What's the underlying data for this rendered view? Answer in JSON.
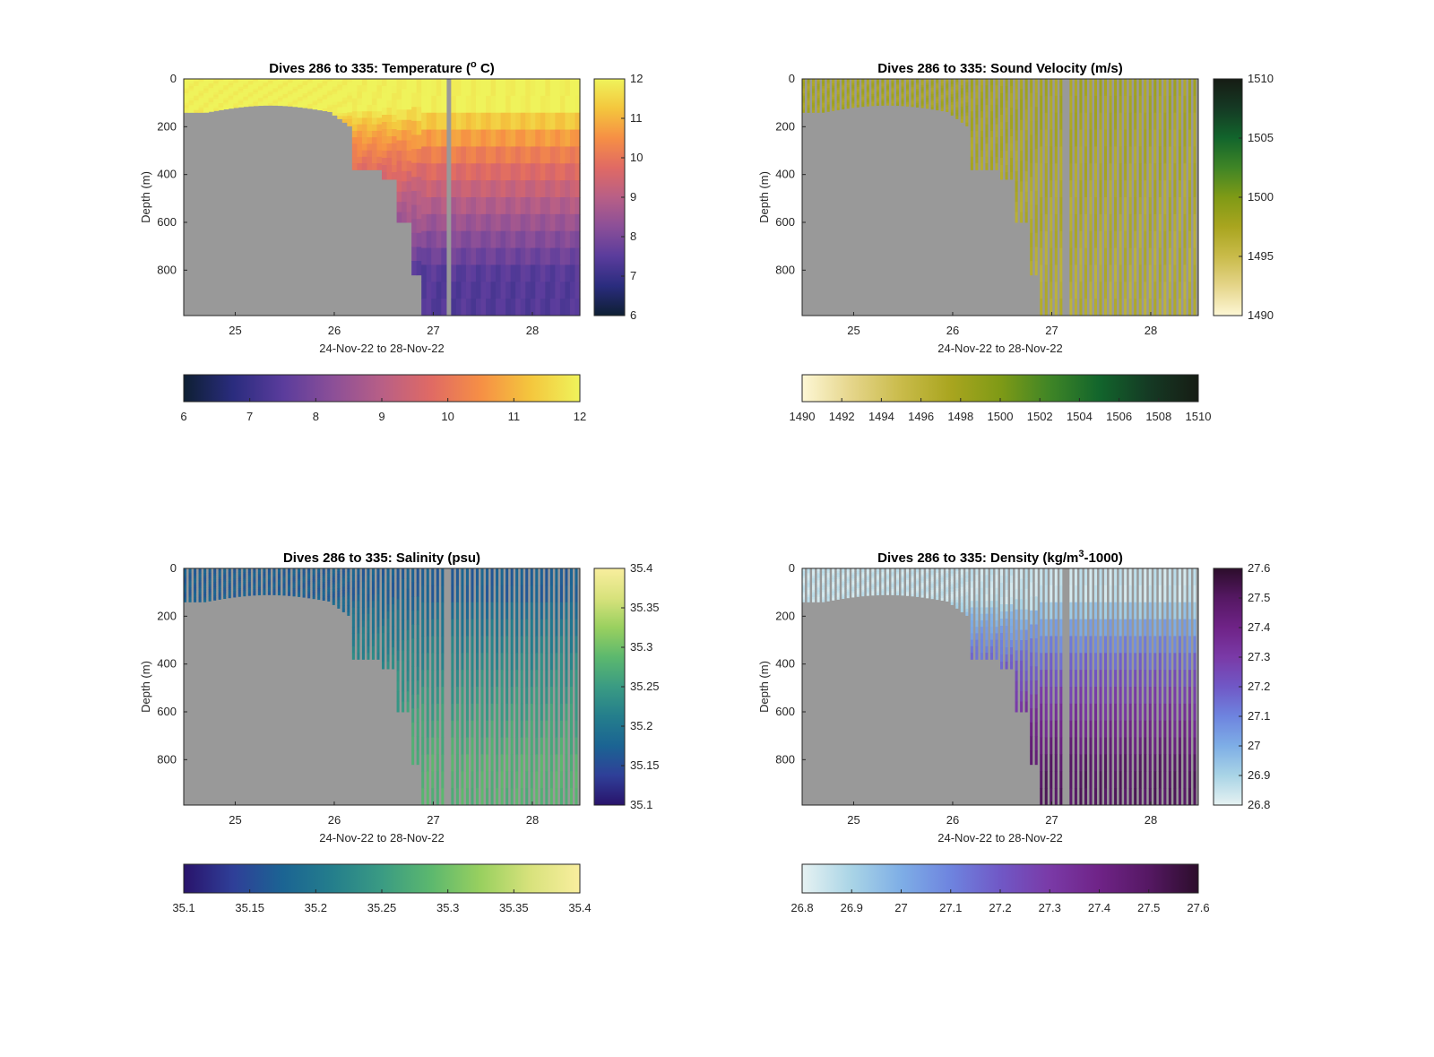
{
  "chart_data": [
    {
      "type": "heatmap",
      "title": "Dives 286 to 335: Temperature (",
      "title_sup": "o",
      "title_end": " C)",
      "xlabel": "24-Nov-22 to 28-Nov-22",
      "ylabel": "Depth (m)",
      "xlim": [
        24.48,
        28.48
      ],
      "ylim": [
        0,
        990
      ],
      "y_reversed": true,
      "x_ticks": [
        "25",
        "26",
        "27",
        "28"
      ],
      "y_ticks": [
        "0",
        "200",
        "400",
        "600",
        "800"
      ],
      "clim": [
        6,
        12
      ],
      "colorbar_ticks_vertical": [
        "6",
        "7",
        "8",
        "9",
        "10",
        "11",
        "12"
      ],
      "colorbar_ticks_horizontal": [
        "6",
        "7",
        "8",
        "9",
        "10",
        "11",
        "12"
      ],
      "colormap": [
        "#0e1f33",
        "#2a2c7e",
        "#5a3c9c",
        "#8b4f98",
        "#b85f86",
        "#e06a64",
        "#f68f45",
        "#f4c63d",
        "#eff35b"
      ],
      "surface_value": 12,
      "deep_value": 7.4,
      "thermocline_depth": 130,
      "profile_gaps": false,
      "no_data_color": "#999999"
    },
    {
      "type": "heatmap",
      "title": "Dives 286 to 335: Sound Velocity (m/s)",
      "xlabel": "24-Nov-22 to 28-Nov-22",
      "ylabel": "Depth (m)",
      "xlim": [
        24.48,
        28.48
      ],
      "ylim": [
        0,
        990
      ],
      "y_reversed": true,
      "x_ticks": [
        "25",
        "26",
        "27",
        "28"
      ],
      "y_ticks": [
        "0",
        "200",
        "400",
        "600",
        "800"
      ],
      "clim": [
        1490,
        1510
      ],
      "colorbar_ticks_vertical": [
        "1490",
        "1495",
        "1500",
        "1505",
        "1510"
      ],
      "colorbar_ticks_horizontal": [
        "1490",
        "1492",
        "1494",
        "1496",
        "1498",
        "1500",
        "1502",
        "1504",
        "1506",
        "1508",
        "1510"
      ],
      "colormap": [
        "#fdf7d5",
        "#e5d58a",
        "#c9bb4a",
        "#a9a51f",
        "#7f9a16",
        "#3f8526",
        "#12652c",
        "#153a24",
        "#161c14"
      ],
      "surface_value": 1497.5,
      "deep_value": 1496.5,
      "thermocline_depth": 150,
      "profile_gaps": true,
      "no_data_color": "#999999"
    },
    {
      "type": "heatmap",
      "title": "Dives 286 to 335: Salinity (psu)",
      "xlabel": "24-Nov-22 to 28-Nov-22",
      "ylabel": "Depth (m)",
      "xlim": [
        24.48,
        28.48
      ],
      "ylim": [
        0,
        990
      ],
      "y_reversed": true,
      "x_ticks": [
        "25",
        "26",
        "27",
        "28"
      ],
      "y_ticks": [
        "0",
        "200",
        "400",
        "600",
        "800"
      ],
      "clim": [
        35.1,
        35.4
      ],
      "colorbar_ticks_vertical": [
        "35.1",
        "35.15",
        "35.2",
        "35.25",
        "35.3",
        "35.35",
        "35.4"
      ],
      "colorbar_ticks_horizontal": [
        "35.1",
        "35.15",
        "35.2",
        "35.25",
        "35.3",
        "35.35",
        "35.4"
      ],
      "colormap": [
        "#29136b",
        "#2f3f98",
        "#1b6493",
        "#247e8c",
        "#3a9b83",
        "#5cb86e",
        "#99d05f",
        "#d8e27c",
        "#f9ee9e"
      ],
      "surface_value": 35.17,
      "deep_value": 35.28,
      "thermocline_depth": 120,
      "profile_gaps": true,
      "no_data_color": "#999999"
    },
    {
      "type": "heatmap",
      "title": "Dives 286 to 335: Density (kg/m",
      "title_sup": "3",
      "title_end": "-1000)",
      "xlabel": "24-Nov-22 to 28-Nov-22",
      "ylabel": "Depth (m)",
      "xlim": [
        24.48,
        28.48
      ],
      "ylim": [
        0,
        990
      ],
      "y_reversed": true,
      "x_ticks": [
        "25",
        "26",
        "27",
        "28"
      ],
      "y_ticks": [
        "0",
        "200",
        "400",
        "600",
        "800"
      ],
      "clim": [
        26.8,
        27.6
      ],
      "colorbar_ticks_vertical": [
        "26.8",
        "26.9",
        "27",
        "27.1",
        "27.2",
        "27.3",
        "27.4",
        "27.5",
        "27.6"
      ],
      "colorbar_ticks_horizontal": [
        "26.8",
        "26.9",
        "27",
        "27.1",
        "27.2",
        "27.3",
        "27.4",
        "27.5",
        "27.6"
      ],
      "colormap": [
        "#e6f2f2",
        "#a9d4e6",
        "#7eaee6",
        "#6e84df",
        "#7058c6",
        "#7a3aa7",
        "#6f2387",
        "#551863",
        "#2c0d2b"
      ],
      "surface_value": 26.85,
      "deep_value": 27.5,
      "thermocline_depth": 140,
      "profile_gaps": true,
      "no_data_color": "#999999"
    }
  ]
}
